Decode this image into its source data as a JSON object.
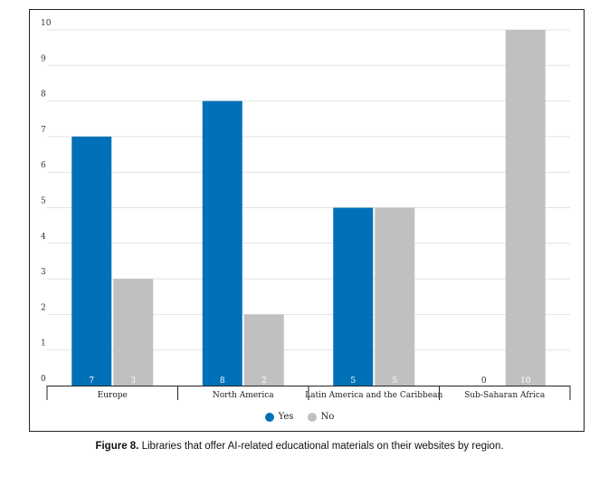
{
  "chart_data": {
    "type": "bar",
    "categories": [
      "Europe",
      "North America",
      "Latin America and the Caribbean",
      "Sub-Saharan Africa"
    ],
    "series": [
      {
        "name": "Yes",
        "values": [
          7,
          8,
          5,
          0
        ],
        "color": "#0071b8"
      },
      {
        "name": "No",
        "values": [
          3,
          2,
          5,
          10
        ],
        "color": "#c0c0c0"
      }
    ],
    "ylim": [
      0,
      10
    ],
    "yticks": [
      "0",
      "1",
      "2",
      "3",
      "4",
      "5",
      "6",
      "7",
      "8",
      "9",
      "10"
    ],
    "grid": true,
    "legend_position": "bottom-center",
    "title": "",
    "xlabel": "",
    "ylabel": ""
  },
  "caption": {
    "label": "Figure 8.",
    "text": "Libraries that offer AI-related educational materials on their websites by region."
  }
}
